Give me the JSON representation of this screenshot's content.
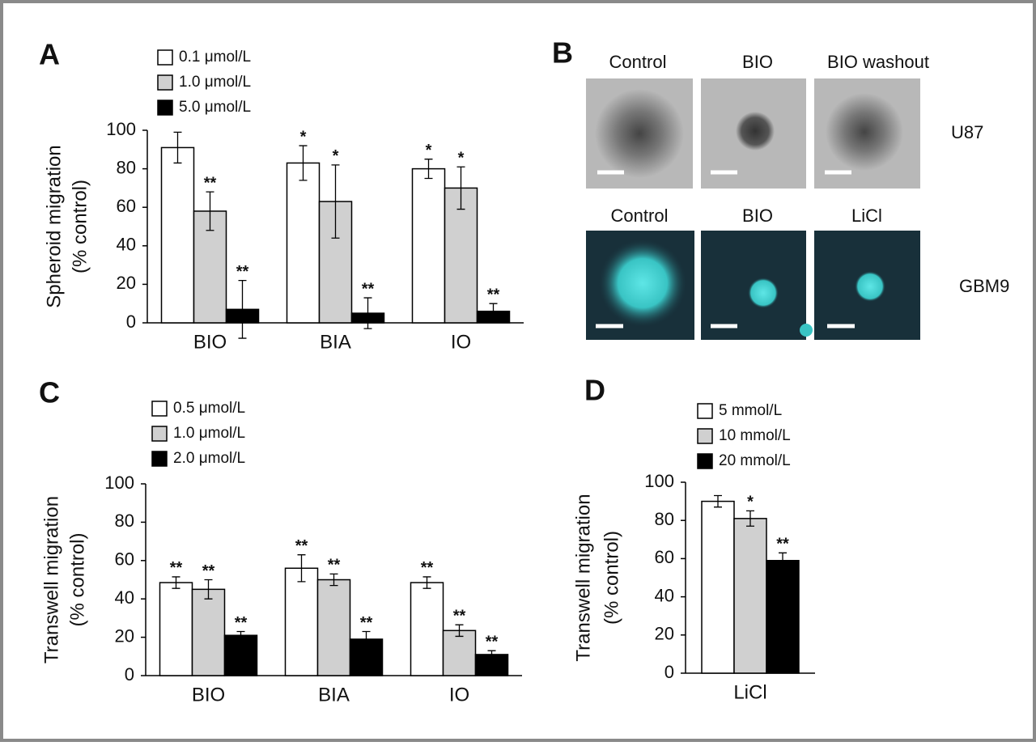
{
  "chart_data": [
    {
      "type": "bar",
      "panel": "A",
      "y_label": [
        "Spheroid migration",
        "(% control)"
      ],
      "categories": [
        "BIO",
        "BIA",
        "IO"
      ],
      "series": [
        {
          "name": "0.1 μmol/L",
          "color": "#ffffff",
          "values": [
            91,
            83,
            80
          ],
          "errors": [
            8,
            9,
            5
          ],
          "annotations": [
            null,
            "*",
            "*"
          ]
        },
        {
          "name": "1.0 μmol/L",
          "color": "#d0d0d0",
          "values": [
            58,
            63,
            70
          ],
          "errors": [
            10,
            19,
            11
          ],
          "annotations": [
            "**",
            "*",
            "*"
          ]
        },
        {
          "name": "5.0 μmol/L",
          "color": "#000000",
          "values": [
            7,
            5,
            6
          ],
          "errors": [
            15,
            8,
            4
          ],
          "annotations": [
            "**",
            "**",
            "**"
          ]
        }
      ],
      "ylim": [
        0,
        100
      ],
      "yticks": [
        0,
        20,
        40,
        60,
        80,
        100
      ]
    },
    {
      "type": "bar",
      "panel": "C",
      "y_label": [
        "Transwell migration",
        "(% control)"
      ],
      "categories": [
        "BIO",
        "BIA",
        "IO"
      ],
      "series": [
        {
          "name": "0.5 μmol/L",
          "color": "#ffffff",
          "values": [
            48.5,
            56,
            48.5
          ],
          "errors": [
            3,
            7,
            3
          ],
          "annotations": [
            "**",
            "**",
            "**"
          ]
        },
        {
          "name": "1.0 μmol/L",
          "color": "#d0d0d0",
          "values": [
            45,
            50,
            23.5
          ],
          "errors": [
            5,
            3,
            3
          ],
          "annotations": [
            "**",
            "**",
            "**"
          ]
        },
        {
          "name": "2.0 μmol/L",
          "color": "#000000",
          "values": [
            21,
            19,
            11
          ],
          "errors": [
            2,
            4,
            2
          ],
          "annotations": [
            "**",
            "**",
            "**"
          ]
        }
      ],
      "ylim": [
        0,
        100
      ],
      "yticks": [
        0,
        20,
        40,
        60,
        80,
        100
      ]
    },
    {
      "type": "bar",
      "panel": "D",
      "y_label": [
        "Transwell migration",
        "(% control)"
      ],
      "categories": [
        "LiCl"
      ],
      "series": [
        {
          "name": "5 mmol/L",
          "color": "#ffffff",
          "values": [
            90
          ],
          "errors": [
            3
          ],
          "annotations": [
            null
          ]
        },
        {
          "name": "10 mmol/L",
          "color": "#d0d0d0",
          "values": [
            81
          ],
          "errors": [
            4
          ],
          "annotations": [
            "*"
          ]
        },
        {
          "name": "20 mmol/L",
          "color": "#000000",
          "values": [
            59
          ],
          "errors": [
            4
          ],
          "annotations": [
            "**"
          ]
        }
      ],
      "ylim": [
        0,
        100
      ],
      "yticks": [
        0,
        20,
        40,
        60,
        80,
        100
      ]
    }
  ],
  "panel_b": {
    "panel": "B",
    "rows": [
      {
        "label": "U87",
        "columns": [
          "Control",
          "BIO",
          "BIO washout"
        ]
      },
      {
        "label": "GBM9",
        "columns": [
          "Control",
          "BIO",
          "LiCl"
        ]
      }
    ]
  }
}
